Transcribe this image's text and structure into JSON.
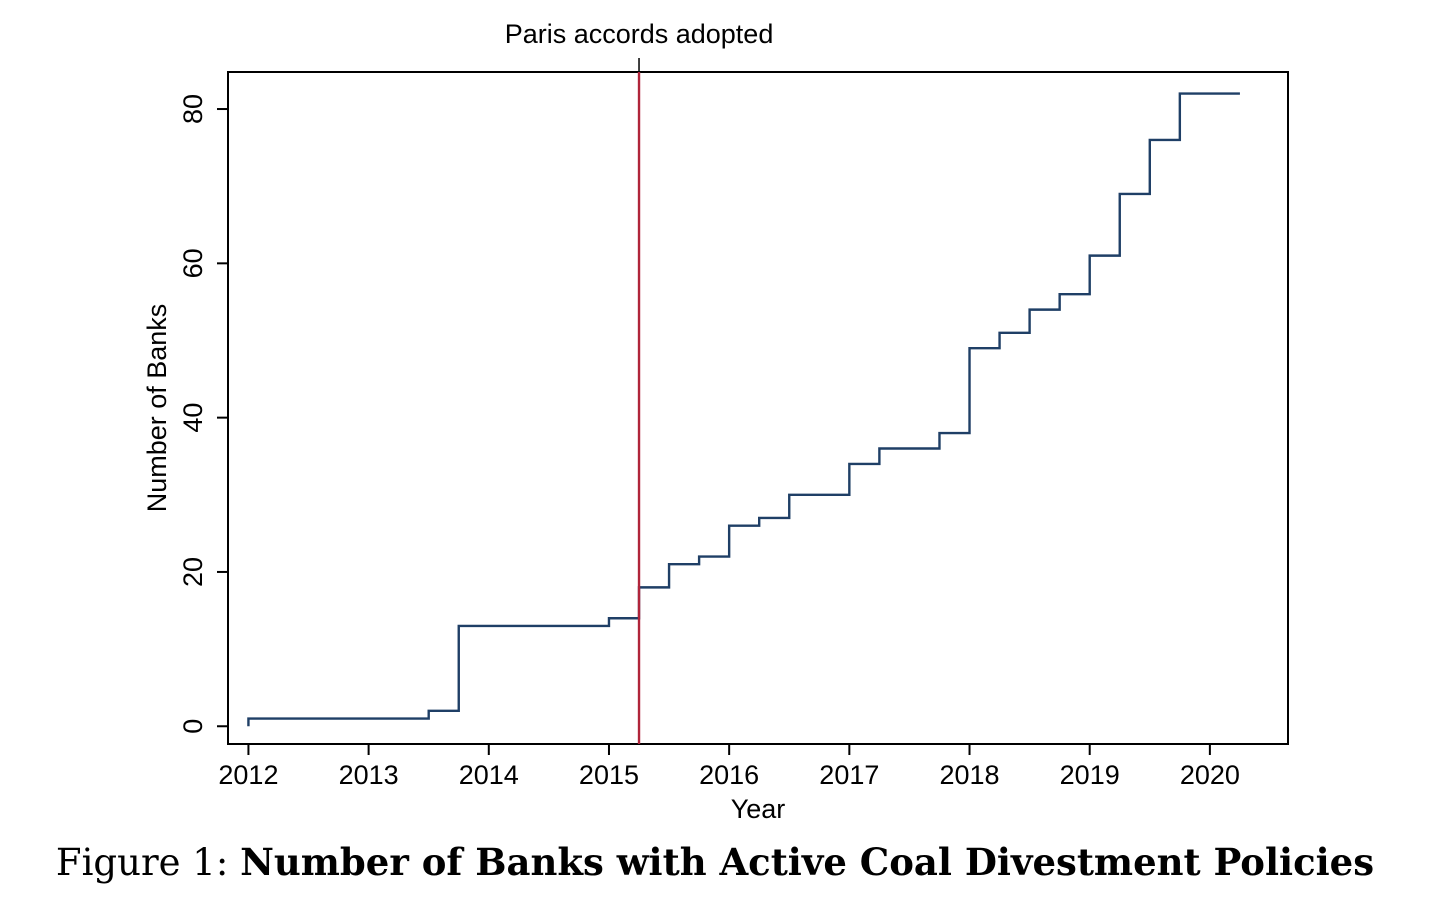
{
  "chart_data": {
    "type": "line",
    "style": "step",
    "xlabel": "Year",
    "ylabel": "Number of Banks",
    "xlim": [
      2011.83,
      2020.65
    ],
    "ylim": [
      -2.3,
      84.8
    ],
    "xticks": [
      2012,
      2013,
      2014,
      2015,
      2016,
      2017,
      2018,
      2019,
      2020
    ],
    "yticks": [
      0,
      20,
      40,
      60,
      80
    ],
    "grid": false,
    "series": [
      {
        "color": "#1f3f66",
        "x": [
          2012.0,
          2013.5,
          2013.75,
          2015.0,
          2015.25,
          2015.5,
          2015.75,
          2016.0,
          2016.25,
          2016.5,
          2016.75,
          2017.0,
          2017.25,
          2017.5,
          2017.75,
          2018.0,
          2018.25,
          2018.5,
          2018.75,
          2019.0,
          2019.25,
          2019.5,
          2019.75,
          2020.0,
          2020.25
        ],
        "y": [
          0,
          1,
          2,
          13,
          14,
          18,
          21,
          22,
          26,
          27,
          30,
          30,
          34,
          36,
          36,
          38,
          49,
          51,
          54,
          56,
          61,
          69,
          76,
          82,
          82
        ]
      }
    ],
    "annotations": [
      {
        "x": 2015.25,
        "label": "Paris accords adopted",
        "color": "#b0243a"
      }
    ]
  },
  "caption": {
    "prefix": "Figure 1:",
    "title": "Number of Banks with Active Coal Divestment Policies"
  }
}
